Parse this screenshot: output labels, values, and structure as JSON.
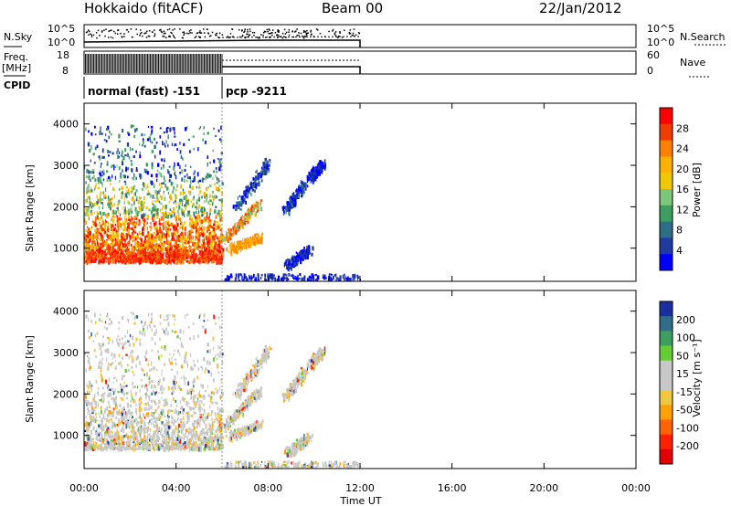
{
  "header": {
    "station": "Hokkaido (fitACF)",
    "beam": "Beam 00",
    "date": "22/Jan/2012"
  },
  "noise_panel": {
    "left_label": "N.Sky",
    "right_label": "N.Search",
    "left_ticks": [
      "10^5",
      "10^0"
    ],
    "right_ticks": [
      "10^5",
      "10^0"
    ]
  },
  "freq_panel": {
    "left_label_1": "Freq.",
    "left_label_2": "[MHz]",
    "right_label": "Nave",
    "left_ticks": [
      "18",
      "8"
    ],
    "right_ticks": [
      "60",
      "0"
    ]
  },
  "cpid_panel": {
    "label": "CPID",
    "modes": [
      {
        "name": "normal (fast) -151",
        "start_hour": 0,
        "end_hour": 6
      },
      {
        "name": "pcp -9211",
        "start_hour": 6,
        "end_hour": 12
      }
    ]
  },
  "chart_data": [
    {
      "type": "heatmap",
      "name": "power",
      "ylabel": "Slant Range [km]",
      "yticks": [
        "4000",
        "3000",
        "2000",
        "1000"
      ],
      "ylim": [
        200,
        4500
      ],
      "xlim": [
        0,
        24
      ],
      "colorbar": {
        "label": "Power [dB]",
        "ticks": [
          "28",
          "24",
          "20",
          "16",
          "12",
          "8",
          "4"
        ],
        "colors": [
          "#ff0000",
          "#f03c00",
          "#ff7f00",
          "#ffb000",
          "#f0c800",
          "#7cc67a",
          "#3c9f5f",
          "#2f6e8a",
          "#1e3ca0",
          "#0000ff"
        ]
      }
    },
    {
      "type": "heatmap",
      "name": "velocity",
      "ylabel": "Slant Range [km]",
      "yticks": [
        "4000",
        "3000",
        "2000",
        "1000"
      ],
      "ylim": [
        200,
        4500
      ],
      "xlim": [
        0,
        24
      ],
      "colorbar": {
        "label": "Velocity [m s⁻¹]",
        "ticks": [
          "200",
          "100",
          "50",
          "15",
          "-15",
          "-50",
          "-100",
          "-200"
        ],
        "colors": [
          "#1c2fa0",
          "#2f6e8a",
          "#3c9f5f",
          "#66cc33",
          "#c8c8c8",
          "#c8c8c8",
          "#f0c840",
          "#ffa000",
          "#ff6400",
          "#ff2000",
          "#e00000"
        ]
      }
    }
  ],
  "xaxis": {
    "label": "Time UT",
    "ticks": [
      "00:00",
      "04:00",
      "08:00",
      "12:00",
      "16:00",
      "20:00",
      "00:00"
    ]
  }
}
